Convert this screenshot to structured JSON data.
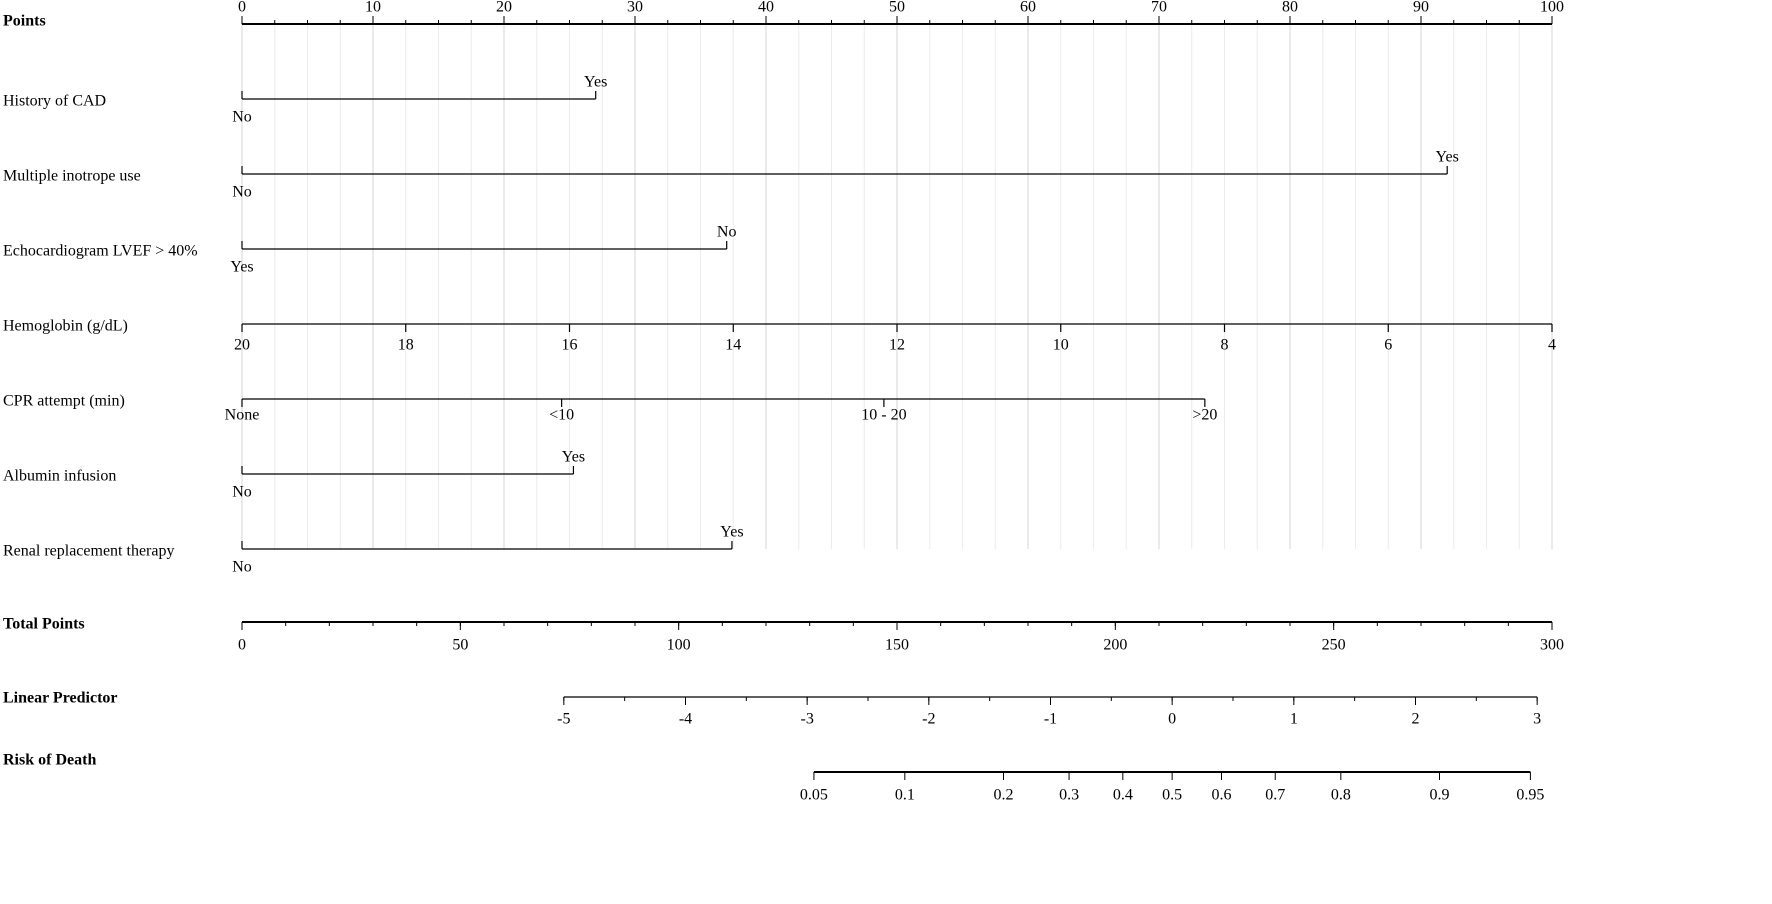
{
  "chart_data": {
    "type": "nomogram",
    "points_scale": {
      "name": "Points",
      "lim": [
        0,
        100
      ],
      "ticks": [
        0,
        10,
        20,
        30,
        40,
        50,
        60,
        70,
        80,
        90,
        100
      ],
      "minor_step": 2.5
    },
    "variables": [
      {
        "name": "History of CAD",
        "levels": [
          {
            "label": "No",
            "points": 0
          },
          {
            "label": "Yes",
            "points": 27
          }
        ]
      },
      {
        "name": "Multiple inotrope use",
        "levels": [
          {
            "label": "No",
            "points": 0
          },
          {
            "label": "Yes",
            "points": 92
          }
        ]
      },
      {
        "name": "Echocardiogram LVEF > 40%",
        "levels": [
          {
            "label": "Yes",
            "points": 0
          },
          {
            "label": "No",
            "points": 37
          }
        ]
      },
      {
        "name": "Hemoglobin (g/dL)",
        "lim": [
          20,
          4
        ],
        "points_lim": [
          0,
          100
        ],
        "ticks": [
          20,
          18,
          16,
          14,
          12,
          10,
          8,
          6,
          4
        ]
      },
      {
        "name": "CPR attempt (min)",
        "levels": [
          {
            "label": "None",
            "points": 0
          },
          {
            "label": "<10",
            "points": 24.4
          },
          {
            "label": "10 - 20",
            "points": 49
          },
          {
            "label": ">20",
            "points": 73.5
          }
        ]
      },
      {
        "name": "Albumin infusion",
        "levels": [
          {
            "label": "No",
            "points": 0
          },
          {
            "label": "Yes",
            "points": 25.3
          }
        ]
      },
      {
        "name": "Renal replacement therapy",
        "levels": [
          {
            "label": "No",
            "points": 0
          },
          {
            "label": "Yes",
            "points": 37.4
          }
        ]
      }
    ],
    "total_points": {
      "name": "Total Points",
      "lim": [
        0,
        300
      ],
      "ticks": [
        0,
        50,
        100,
        150,
        200,
        250,
        300
      ],
      "minor_step": 10
    },
    "linear_predictor": {
      "name": "Linear Predictor",
      "lim": [
        -5,
        3
      ],
      "total_points_lim": [
        73.7,
        296.6
      ],
      "ticks": [
        -5,
        -4,
        -3,
        -2,
        -1,
        0,
        1,
        2,
        3
      ],
      "minor_step": 0.5
    },
    "risk": {
      "name": "Risk of Death",
      "transform": "logit",
      "ticks": [
        0.05,
        0.1,
        0.2,
        0.3,
        0.4,
        0.5,
        0.6,
        0.7,
        0.8,
        0.9,
        0.95
      ]
    },
    "grid": true
  }
}
